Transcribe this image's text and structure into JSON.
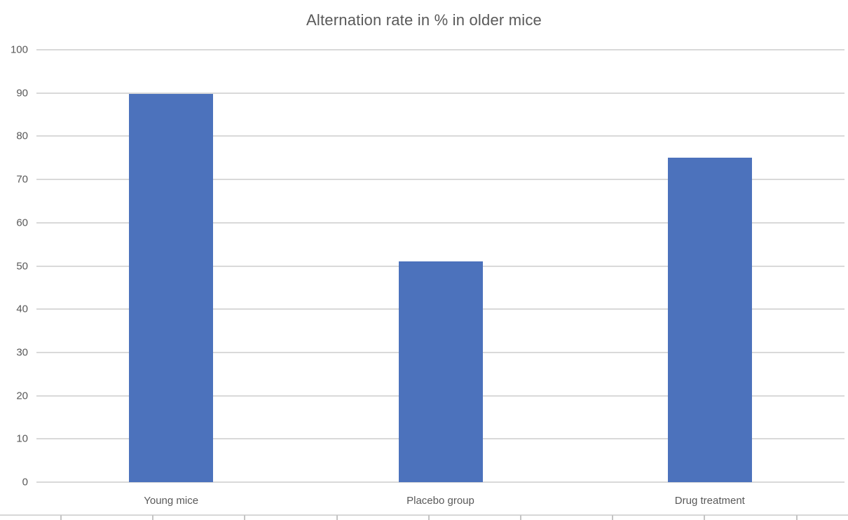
{
  "chart_data": {
    "type": "bar",
    "title": "Alternation rate in % in older mice",
    "categories": [
      "Young mice",
      "Placebo group",
      "Drug treatment"
    ],
    "values": [
      89.8,
      51,
      75
    ],
    "ylim": [
      0,
      100
    ],
    "yticks": [
      0,
      10,
      20,
      30,
      40,
      50,
      60,
      70,
      80,
      90,
      100
    ],
    "xlabel": "",
    "ylabel": "",
    "legend": "none",
    "grid": "horizontal",
    "colors": {
      "bar": "#4C72BC",
      "gridline": "#D9D9D9",
      "text": "#595959",
      "background": "#FFFFFF",
      "sheet_border": "#C4C4C4"
    }
  }
}
